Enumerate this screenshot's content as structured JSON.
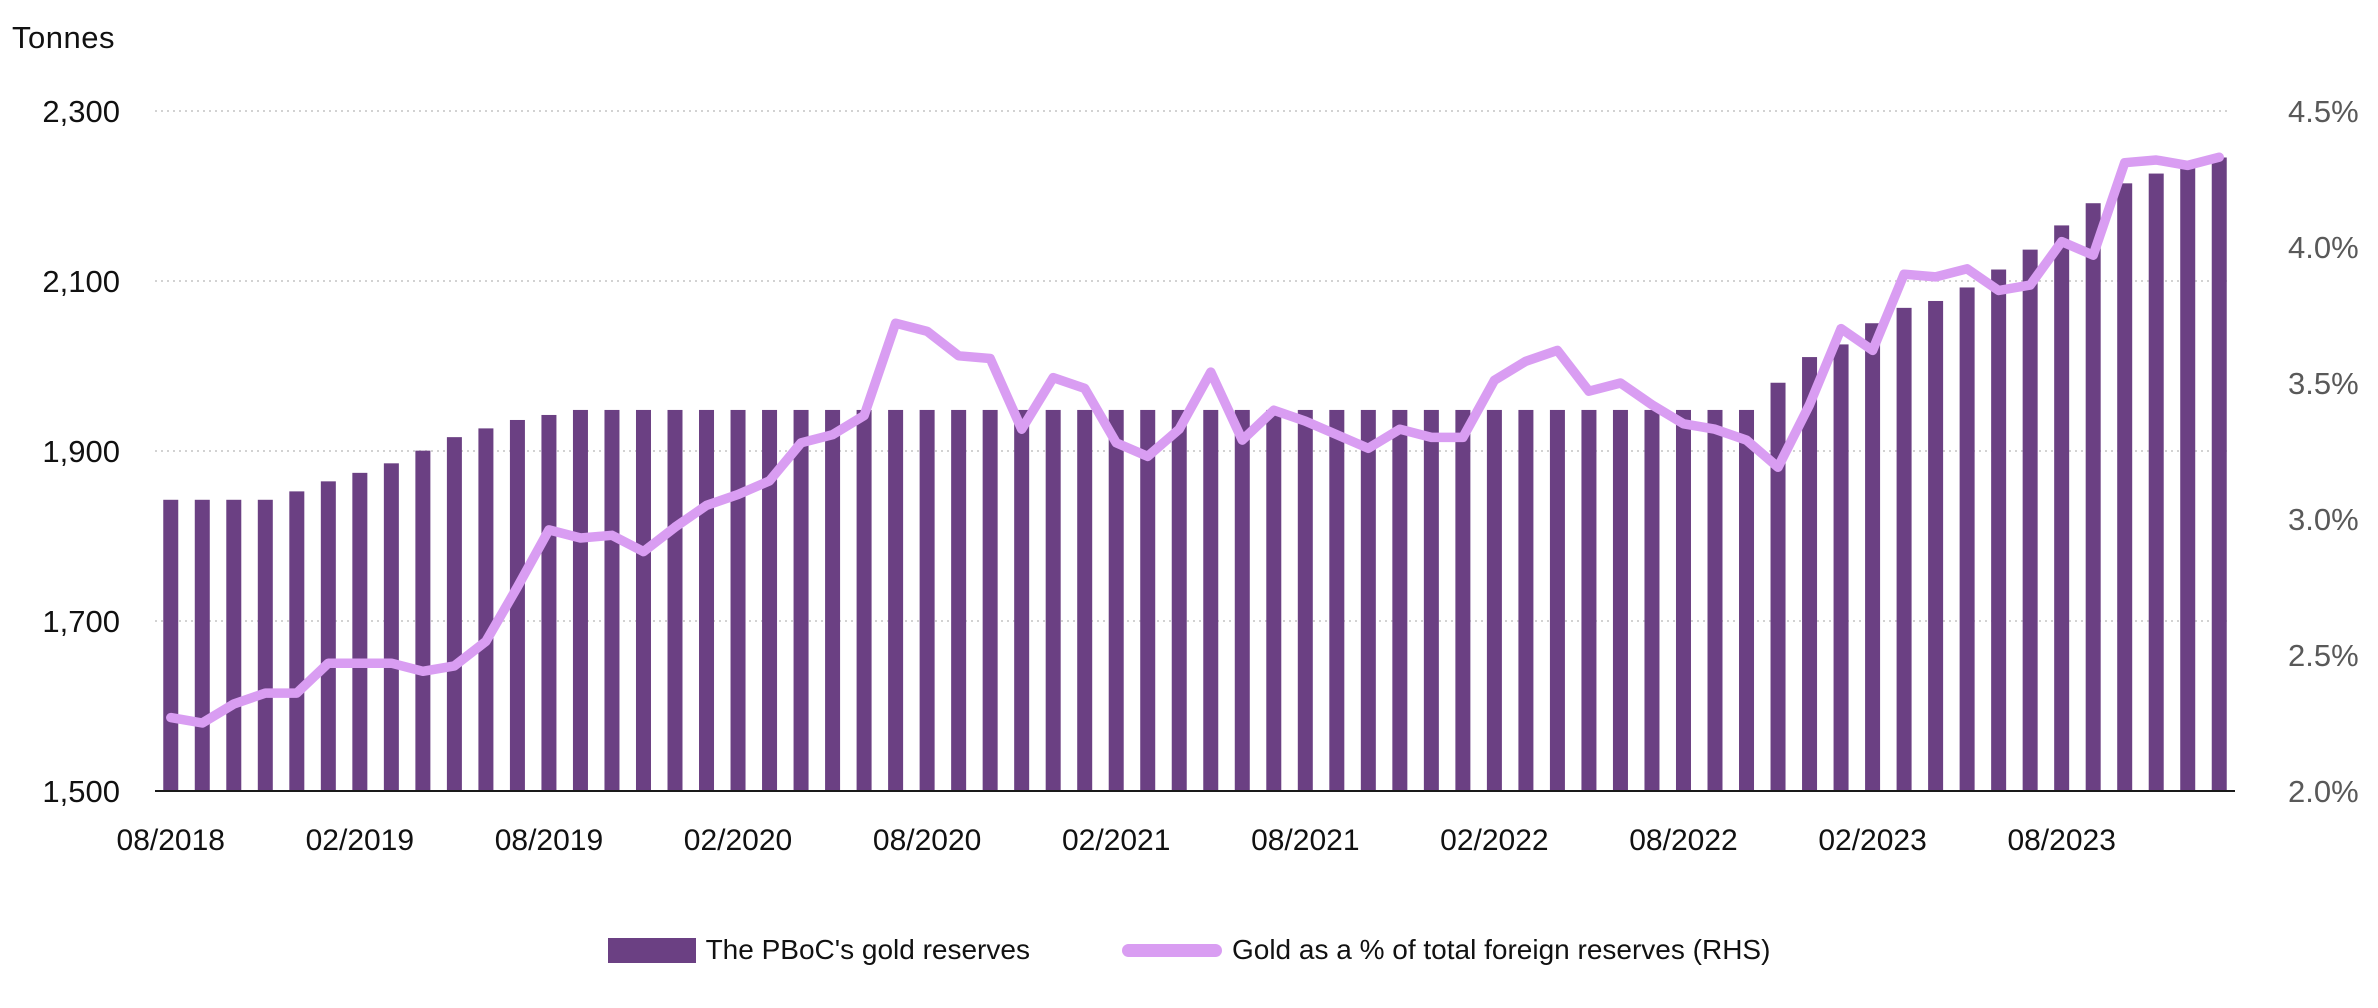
{
  "chart_data": {
    "type": "combo bar+line, dual axis",
    "title": "",
    "left_axis": {
      "title": "Tonnes",
      "ticks": [
        "2,300",
        "2,100",
        "1,900",
        "1,700",
        "1,500"
      ],
      "min": 1500,
      "max": 2300,
      "tick_step": 200
    },
    "right_axis": {
      "ticks": [
        "4.5%",
        "4.0%",
        "3.5%",
        "3.0%",
        "2.5%",
        "2.0%"
      ],
      "min": 2.0,
      "max": 4.5,
      "tick_step": 0.5
    },
    "x_tick_labels": [
      "08/2018",
      "02/2019",
      "08/2019",
      "02/2020",
      "08/2020",
      "02/2021",
      "08/2021",
      "02/2022",
      "08/2022",
      "02/2023",
      "08/2023"
    ],
    "x_tick_every": 6,
    "grid": "horizontal dotted lines at left-axis ticks",
    "legend_position": "bottom-center",
    "x": [
      "08/2018",
      "09/2018",
      "10/2018",
      "11/2018",
      "12/2018",
      "01/2019",
      "02/2019",
      "03/2019",
      "04/2019",
      "05/2019",
      "06/2019",
      "07/2019",
      "08/2019",
      "09/2019",
      "10/2019",
      "11/2019",
      "12/2019",
      "01/2020",
      "02/2020",
      "03/2020",
      "04/2020",
      "05/2020",
      "06/2020",
      "07/2020",
      "08/2020",
      "09/2020",
      "10/2020",
      "11/2020",
      "12/2020",
      "01/2021",
      "02/2021",
      "03/2021",
      "04/2021",
      "05/2021",
      "06/2021",
      "07/2021",
      "08/2021",
      "09/2021",
      "10/2021",
      "11/2021",
      "12/2021",
      "01/2022",
      "02/2022",
      "03/2022",
      "04/2022",
      "05/2022",
      "06/2022",
      "07/2022",
      "08/2022",
      "09/2022",
      "10/2022",
      "11/2022",
      "12/2022",
      "01/2023",
      "02/2023",
      "03/2023",
      "04/2023",
      "05/2023",
      "06/2023",
      "07/2023",
      "08/2023",
      "09/2023",
      "10/2023",
      "11/2023",
      "12/2023",
      "01/2024"
    ],
    "series": [
      {
        "name": "The PBoC's gold reserves",
        "type": "bar",
        "axis": "left",
        "unit": "tonnes",
        "color": "#6b4083",
        "values": [
          1842.6,
          1842.6,
          1842.6,
          1842.6,
          1852.5,
          1864.3,
          1874.3,
          1885.5,
          1900.4,
          1916.3,
          1926.6,
          1936.5,
          1942.4,
          1948.3,
          1948.3,
          1948.3,
          1948.3,
          1948.3,
          1948.3,
          1948.3,
          1948.3,
          1948.3,
          1948.3,
          1948.3,
          1948.3,
          1948.3,
          1948.3,
          1948.3,
          1948.3,
          1948.3,
          1948.3,
          1948.3,
          1948.3,
          1948.3,
          1948.3,
          1948.3,
          1948.3,
          1948.3,
          1948.3,
          1948.3,
          1948.3,
          1948.3,
          1948.3,
          1948.3,
          1948.3,
          1948.3,
          1948.3,
          1948.3,
          1948.3,
          1948.3,
          1948.3,
          1980.3,
          2010.5,
          2025.4,
          2050.3,
          2068.4,
          2076.5,
          2092.4,
          2113.5,
          2136.9,
          2165.4,
          2191.5,
          2214.9,
          2226.4,
          2235.4,
          2245.3
        ]
      },
      {
        "name": "Gold as a % of total foreign reserves (RHS)",
        "type": "line",
        "axis": "right",
        "unit": "%",
        "color": "#d99df2",
        "values": [
          2.27,
          2.25,
          2.32,
          2.36,
          2.36,
          2.47,
          2.47,
          2.47,
          2.44,
          2.46,
          2.55,
          2.75,
          2.96,
          2.93,
          2.94,
          2.88,
          2.97,
          3.05,
          3.09,
          3.14,
          3.28,
          3.31,
          3.38,
          3.72,
          3.69,
          3.6,
          3.59,
          3.33,
          3.52,
          3.48,
          3.28,
          3.23,
          3.33,
          3.54,
          3.29,
          3.4,
          3.36,
          3.31,
          3.26,
          3.33,
          3.3,
          3.3,
          3.51,
          3.58,
          3.62,
          3.47,
          3.5,
          3.42,
          3.35,
          3.33,
          3.29,
          3.19,
          3.42,
          3.7,
          3.62,
          3.9,
          3.89,
          3.92,
          3.84,
          3.86,
          4.02,
          3.97,
          4.31,
          4.32,
          4.3,
          4.33
        ]
      }
    ]
  },
  "colors": {
    "background": "#ffffff",
    "bar": "#6b4083",
    "line": "#d99df2",
    "gridline": "#c4c4c4",
    "axis_line": "#1a1a1a",
    "left_tick_text": "#111111",
    "right_tick_text": "#595959",
    "x_tick_text": "#111111"
  },
  "legend": {
    "items": [
      {
        "label": "The PBoC's gold reserves",
        "swatch": "bar"
      },
      {
        "label": "Gold as a % of total foreign reserves (RHS)",
        "swatch": "line"
      }
    ]
  }
}
